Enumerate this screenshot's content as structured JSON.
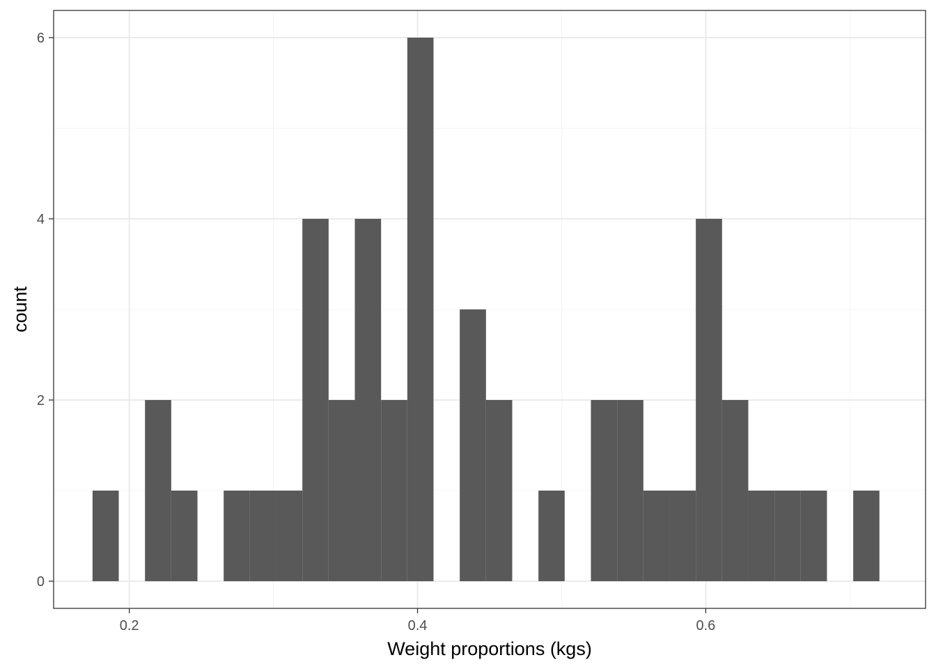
{
  "chart_data": {
    "type": "bar",
    "subtype": "histogram",
    "title": "",
    "xlabel": "Weight proportions (kgs)",
    "ylabel": "count",
    "xlim": [
      0.1475,
      0.7525
    ],
    "ylim": [
      -0.3,
      6.3
    ],
    "x_ticks": [
      {
        "value": 0.2,
        "label": "0.2"
      },
      {
        "value": 0.4,
        "label": "0.4"
      },
      {
        "value": 0.6,
        "label": "0.6"
      }
    ],
    "y_ticks": [
      {
        "value": 0,
        "label": "0"
      },
      {
        "value": 2,
        "label": "2"
      },
      {
        "value": 4,
        "label": "4"
      },
      {
        "value": 6,
        "label": "6"
      }
    ],
    "x_minor_gridlines": [
      0.3,
      0.5,
      0.7
    ],
    "y_minor_gridlines": [
      1,
      3,
      5
    ],
    "grid": true,
    "legend": "none",
    "bin_width": 0.0182,
    "bins": [
      {
        "x0": 0.1745,
        "x1": 0.1927,
        "count": 1
      },
      {
        "x0": 0.1927,
        "x1": 0.2109,
        "count": 0
      },
      {
        "x0": 0.2109,
        "x1": 0.2291,
        "count": 2
      },
      {
        "x0": 0.2291,
        "x1": 0.2473,
        "count": 1
      },
      {
        "x0": 0.2473,
        "x1": 0.2655,
        "count": 0
      },
      {
        "x0": 0.2655,
        "x1": 0.2837,
        "count": 1
      },
      {
        "x0": 0.2837,
        "x1": 0.3019,
        "count": 1
      },
      {
        "x0": 0.3019,
        "x1": 0.3201,
        "count": 1
      },
      {
        "x0": 0.3201,
        "x1": 0.3383,
        "count": 4
      },
      {
        "x0": 0.3383,
        "x1": 0.3565,
        "count": 2
      },
      {
        "x0": 0.3565,
        "x1": 0.3747,
        "count": 4
      },
      {
        "x0": 0.3747,
        "x1": 0.3929,
        "count": 2
      },
      {
        "x0": 0.3929,
        "x1": 0.4111,
        "count": 6
      },
      {
        "x0": 0.4111,
        "x1": 0.4293,
        "count": 0
      },
      {
        "x0": 0.4293,
        "x1": 0.4475,
        "count": 3
      },
      {
        "x0": 0.4475,
        "x1": 0.4657,
        "count": 2
      },
      {
        "x0": 0.4657,
        "x1": 0.4839,
        "count": 0
      },
      {
        "x0": 0.4839,
        "x1": 0.5021,
        "count": 1
      },
      {
        "x0": 0.5021,
        "x1": 0.5203,
        "count": 0
      },
      {
        "x0": 0.5203,
        "x1": 0.5385,
        "count": 2
      },
      {
        "x0": 0.5385,
        "x1": 0.5567,
        "count": 2
      },
      {
        "x0": 0.5567,
        "x1": 0.5749,
        "count": 1
      },
      {
        "x0": 0.5749,
        "x1": 0.5931,
        "count": 1
      },
      {
        "x0": 0.5931,
        "x1": 0.6113,
        "count": 4
      },
      {
        "x0": 0.6113,
        "x1": 0.6295,
        "count": 2
      },
      {
        "x0": 0.6295,
        "x1": 0.6477,
        "count": 1
      },
      {
        "x0": 0.6477,
        "x1": 0.6659,
        "count": 1
      },
      {
        "x0": 0.6659,
        "x1": 0.6841,
        "count": 1
      },
      {
        "x0": 0.6841,
        "x1": 0.7023,
        "count": 0
      },
      {
        "x0": 0.7023,
        "x1": 0.7205,
        "count": 1
      }
    ],
    "colors": {
      "bar_fill": "#595959",
      "panel_background": "#ffffff",
      "panel_border": "#333333",
      "major_grid": "#ebebeb",
      "minor_grid": "#f5f5f5",
      "tick_mark": "#333333"
    }
  }
}
